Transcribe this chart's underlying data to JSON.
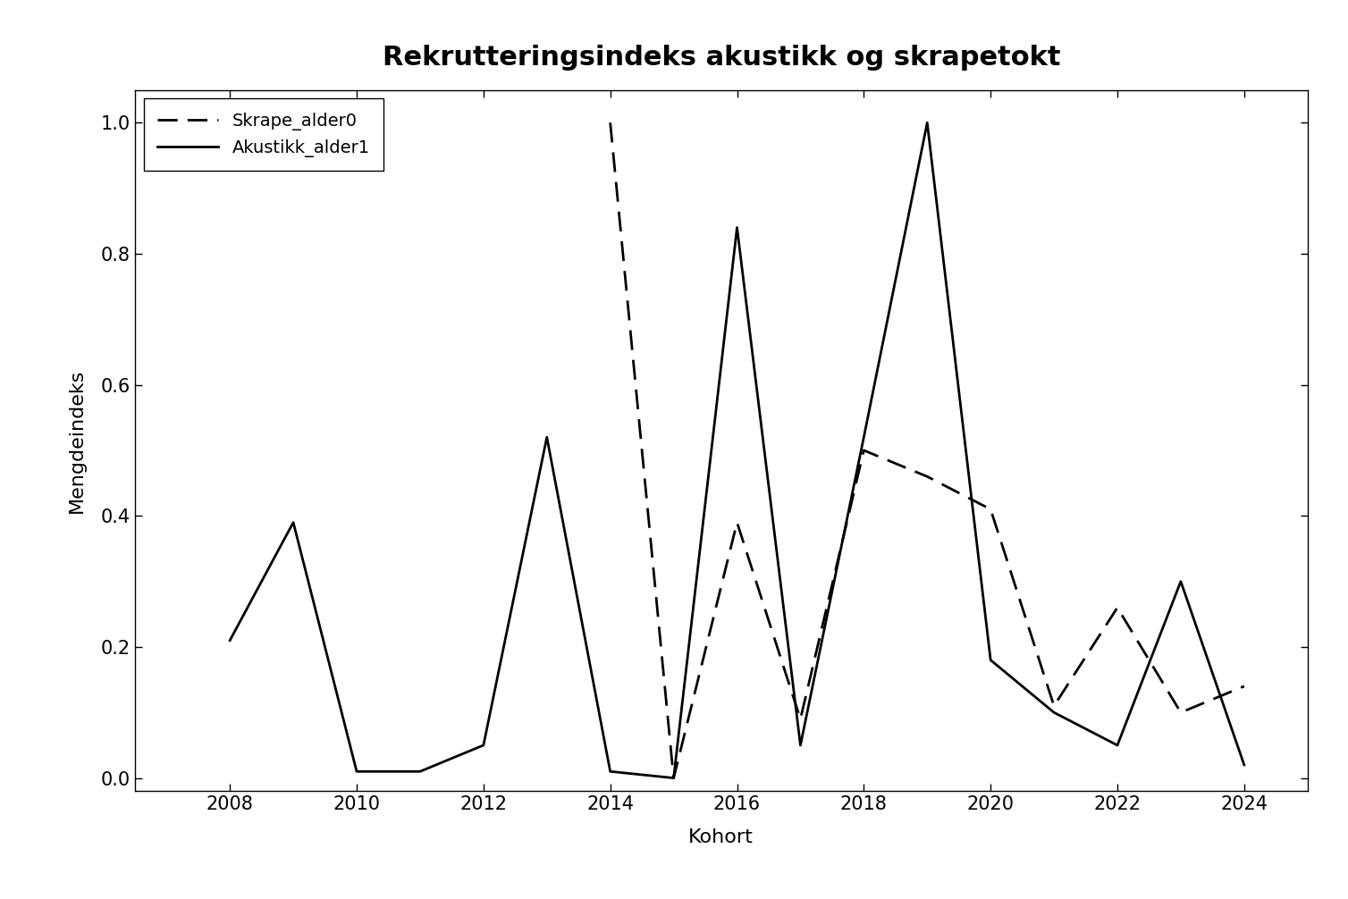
{
  "title": "Rekrutteringsindeks akustikk og skrapetokt",
  "xlabel": "Kohort",
  "ylabel": "Mengdeindeks",
  "akustikk_years": [
    2008,
    2009,
    2010,
    2011,
    2012,
    2013,
    2014,
    2015,
    2016,
    2017,
    2018,
    2019,
    2020,
    2021,
    2022,
    2023,
    2024
  ],
  "akustikk_values": [
    0.21,
    0.39,
    0.01,
    0.01,
    0.05,
    0.52,
    0.01,
    0.0,
    0.84,
    0.05,
    0.52,
    1.0,
    0.18,
    0.1,
    0.05,
    0.3,
    0.02
  ],
  "skrape_years": [
    2014,
    2015,
    2016,
    2017,
    2018,
    2019,
    2020,
    2021,
    2022,
    2023,
    2024
  ],
  "skrape_values": [
    1.0,
    0.0,
    0.39,
    0.09,
    0.5,
    0.46,
    0.41,
    0.11,
    0.26,
    0.1,
    0.14
  ],
  "line_color": "#000000",
  "background_color": "#ffffff",
  "xlim": [
    2006.5,
    2025.0
  ],
  "ylim": [
    -0.02,
    1.05
  ],
  "xticks": [
    2008,
    2010,
    2012,
    2014,
    2016,
    2018,
    2020,
    2022,
    2024
  ],
  "yticks": [
    0.0,
    0.2,
    0.4,
    0.6,
    0.8,
    1.0
  ],
  "title_fontsize": 22,
  "label_fontsize": 16,
  "tick_fontsize": 15,
  "legend_fontsize": 14,
  "linewidth": 2.0
}
